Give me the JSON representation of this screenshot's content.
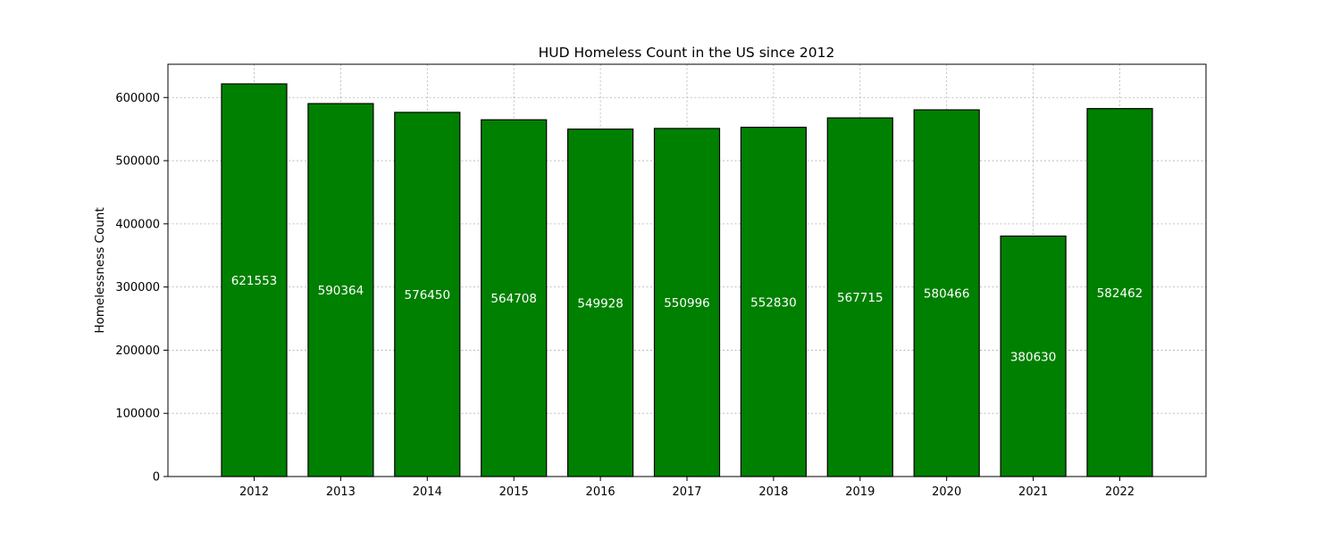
{
  "chart_data": {
    "type": "bar",
    "title": "HUD Homeless Count in the US since 2012",
    "xlabel": "",
    "ylabel": "Homelessness Count",
    "categories": [
      "2012",
      "2013",
      "2014",
      "2015",
      "2016",
      "2017",
      "2018",
      "2019",
      "2020",
      "2021",
      "2022"
    ],
    "values": [
      621553,
      590364,
      576450,
      564708,
      549928,
      550996,
      552830,
      567715,
      580466,
      380630,
      582462
    ],
    "data_labels": [
      "621553",
      "590364",
      "576450",
      "564708",
      "549928",
      "550996",
      "552830",
      "567715",
      "580466",
      "380630",
      "582462"
    ],
    "ylim": [
      0,
      652631
    ],
    "yticks": [
      0,
      100000,
      200000,
      300000,
      400000,
      500000,
      600000
    ],
    "ytick_labels": [
      "0",
      "100000",
      "200000",
      "300000",
      "400000",
      "500000",
      "600000"
    ],
    "grid": true,
    "colors": {
      "bar_fill": "#008000",
      "bar_edge": "#000000",
      "data_label": "#ffffff",
      "grid": "#b0b0b0",
      "text": "#000000"
    }
  }
}
